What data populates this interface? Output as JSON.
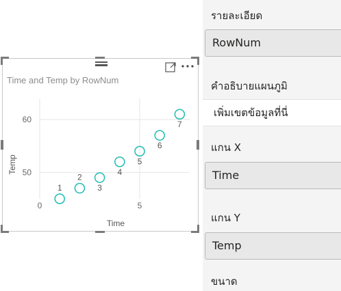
{
  "visual": {
    "title": "Time and Temp by RowNum",
    "icons": {
      "focus": "focus-mode-icon",
      "more": "more-options-icon",
      "move": "drag-grip-icon"
    }
  },
  "chart_data": {
    "type": "scatter",
    "title": "Time and Temp by RowNum",
    "xlabel": "Time",
    "ylabel": "Temp",
    "xlim": [
      0,
      7.5
    ],
    "ylim": [
      45,
      64
    ],
    "x_ticks": [
      0,
      5
    ],
    "y_ticks": [
      50,
      60
    ],
    "grid": true,
    "points": [
      {
        "x": 1,
        "y": 45,
        "label": "1"
      },
      {
        "x": 2,
        "y": 47,
        "label": "2"
      },
      {
        "x": 3,
        "y": 49,
        "label": "3"
      },
      {
        "x": 4,
        "y": 52,
        "label": "4"
      },
      {
        "x": 5,
        "y": 54,
        "label": "5"
      },
      {
        "x": 6,
        "y": 57,
        "label": "6"
      },
      {
        "x": 7,
        "y": 61,
        "label": "7"
      }
    ],
    "marker_color": "#1ebcb0"
  },
  "fields_pane": {
    "details_label": "รายละเอียด",
    "details_value": "RowNum",
    "legend_label": "คำอธิบายแผนภูมิ",
    "legend_placeholder": "เพิ่มเขตข้อมูลที่นี่",
    "x_axis_label": "แกน X",
    "x_axis_value": "Time",
    "y_axis_label": "แกน Y",
    "y_axis_value": "Temp",
    "size_label": "ขนาด"
  },
  "colors": {
    "marker": "#1ebcb0",
    "text": "#252423",
    "pane_bg": "#f4f4f4"
  }
}
